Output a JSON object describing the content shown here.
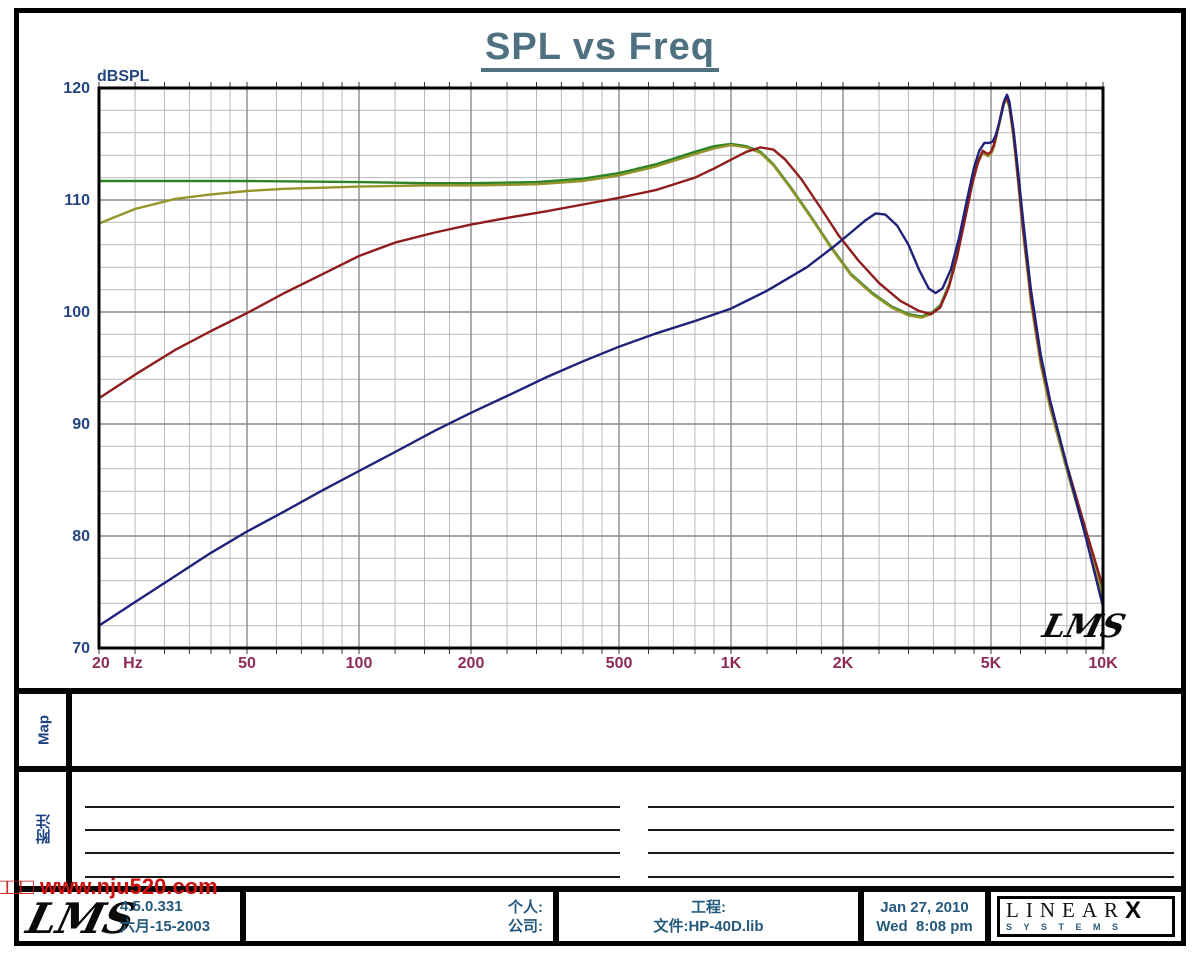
{
  "title": "SPL vs Freq",
  "colors": {
    "title": "#4e7081",
    "y_axis_text": "#25457e",
    "x_axis_text": "#8d2957",
    "grid_minor": "#b9b9b9",
    "grid_major": "#8a8a8a",
    "frame": "#000000",
    "row_label": "#1c4080",
    "footer_text": "#24597c",
    "watermark": "#cc1111"
  },
  "chart_data": {
    "type": "line",
    "title": "SPL vs Freq",
    "ylabel": "dBSPL",
    "xlabel": "",
    "x_scale": "log",
    "xlim": [
      20,
      10000
    ],
    "ylim": [
      70,
      120
    ],
    "grid": true,
    "legend": "none",
    "y_major_ticks": [
      120,
      110,
      100,
      90,
      80,
      70
    ],
    "y_minor_step_db": 2,
    "x_major_ticks": [
      20,
      50,
      100,
      200,
      500,
      1000,
      2000,
      5000,
      10000
    ],
    "x_tick_labels": [
      "20 Hz",
      "50",
      "100",
      "200",
      "500",
      "1K",
      "2K",
      "5K",
      "10K"
    ],
    "inner_logo": "LMS",
    "series": [
      {
        "name": "green",
        "color": "#2c8427",
        "points": [
          [
            20,
            111.7
          ],
          [
            50,
            111.7
          ],
          [
            100,
            111.6
          ],
          [
            150,
            111.5
          ],
          [
            200,
            111.5
          ],
          [
            300,
            111.6
          ],
          [
            400,
            111.9
          ],
          [
            500,
            112.4
          ],
          [
            630,
            113.2
          ],
          [
            800,
            114.3
          ],
          [
            900,
            114.8
          ],
          [
            1000,
            115.0
          ],
          [
            1100,
            114.8
          ],
          [
            1200,
            114.3
          ],
          [
            1300,
            113.2
          ],
          [
            1450,
            111.1
          ],
          [
            1650,
            108.4
          ],
          [
            1850,
            105.9
          ],
          [
            2100,
            103.4
          ],
          [
            2400,
            101.7
          ],
          [
            2700,
            100.5
          ],
          [
            3000,
            99.8
          ],
          [
            3250,
            99.6
          ],
          [
            3450,
            99.9
          ],
          [
            3650,
            100.6
          ],
          [
            3850,
            102.4
          ],
          [
            4050,
            105.1
          ],
          [
            4250,
            108.4
          ],
          [
            4450,
            111.6
          ],
          [
            4600,
            113.4
          ],
          [
            4750,
            114.3
          ],
          [
            4900,
            114.0
          ],
          [
            5000,
            114.2
          ],
          [
            5100,
            114.9
          ],
          [
            5250,
            116.7
          ],
          [
            5400,
            118.6
          ],
          [
            5500,
            119.1
          ],
          [
            5600,
            118.4
          ],
          [
            5750,
            115.6
          ],
          [
            5900,
            112.0
          ],
          [
            6100,
            107.2
          ],
          [
            6400,
            101.0
          ],
          [
            6800,
            95.4
          ],
          [
            7200,
            91.6
          ],
          [
            8000,
            85.9
          ],
          [
            9000,
            80.0
          ],
          [
            10000,
            74.6
          ]
        ]
      },
      {
        "name": "olive",
        "color": "#95942c",
        "points": [
          [
            20,
            107.9
          ],
          [
            25,
            109.2
          ],
          [
            32,
            110.1
          ],
          [
            40,
            110.5
          ],
          [
            50,
            110.8
          ],
          [
            63,
            111.0
          ],
          [
            80,
            111.1
          ],
          [
            100,
            111.2
          ],
          [
            150,
            111.3
          ],
          [
            200,
            111.3
          ],
          [
            300,
            111.4
          ],
          [
            400,
            111.7
          ],
          [
            500,
            112.2
          ],
          [
            630,
            113.0
          ],
          [
            800,
            114.1
          ],
          [
            900,
            114.6
          ],
          [
            1000,
            114.9
          ],
          [
            1100,
            114.7
          ],
          [
            1200,
            114.2
          ],
          [
            1300,
            113.1
          ],
          [
            1450,
            111.0
          ],
          [
            1650,
            108.3
          ],
          [
            1850,
            105.8
          ],
          [
            2100,
            103.3
          ],
          [
            2400,
            101.6
          ],
          [
            2700,
            100.4
          ],
          [
            3000,
            99.7
          ],
          [
            3250,
            99.5
          ],
          [
            3450,
            99.8
          ],
          [
            3650,
            100.5
          ],
          [
            3850,
            102.3
          ],
          [
            4050,
            105.0
          ],
          [
            4250,
            108.3
          ],
          [
            4450,
            111.5
          ],
          [
            4600,
            113.3
          ],
          [
            4750,
            114.2
          ],
          [
            4900,
            113.9
          ],
          [
            5000,
            114.1
          ],
          [
            5100,
            114.8
          ],
          [
            5250,
            116.6
          ],
          [
            5400,
            118.5
          ],
          [
            5500,
            119.0
          ],
          [
            5600,
            118.3
          ],
          [
            5750,
            115.5
          ],
          [
            5900,
            111.9
          ],
          [
            6100,
            107.1
          ],
          [
            6400,
            100.9
          ],
          [
            6800,
            95.3
          ],
          [
            7200,
            91.5
          ],
          [
            8000,
            85.8
          ],
          [
            9000,
            79.9
          ],
          [
            10000,
            74.5
          ]
        ]
      },
      {
        "name": "red",
        "color": "#8f1d1d",
        "points": [
          [
            20,
            92.3
          ],
          [
            25,
            94.4
          ],
          [
            32,
            96.6
          ],
          [
            40,
            98.3
          ],
          [
            50,
            99.9
          ],
          [
            63,
            101.7
          ],
          [
            80,
            103.4
          ],
          [
            100,
            105.0
          ],
          [
            125,
            106.2
          ],
          [
            160,
            107.1
          ],
          [
            200,
            107.8
          ],
          [
            250,
            108.4
          ],
          [
            320,
            109.0
          ],
          [
            400,
            109.6
          ],
          [
            500,
            110.2
          ],
          [
            630,
            110.9
          ],
          [
            800,
            112.0
          ],
          [
            900,
            112.8
          ],
          [
            1000,
            113.6
          ],
          [
            1100,
            114.3
          ],
          [
            1200,
            114.7
          ],
          [
            1300,
            114.5
          ],
          [
            1400,
            113.6
          ],
          [
            1550,
            111.8
          ],
          [
            1750,
            109.2
          ],
          [
            1950,
            106.8
          ],
          [
            2200,
            104.6
          ],
          [
            2500,
            102.6
          ],
          [
            2850,
            101.0
          ],
          [
            3200,
            100.1
          ],
          [
            3450,
            99.8
          ],
          [
            3650,
            100.4
          ],
          [
            3850,
            102.2
          ],
          [
            4050,
            104.9
          ],
          [
            4250,
            108.2
          ],
          [
            4450,
            111.4
          ],
          [
            4600,
            113.2
          ],
          [
            4750,
            114.4
          ],
          [
            4900,
            114.1
          ],
          [
            5000,
            114.3
          ],
          [
            5100,
            115.0
          ],
          [
            5250,
            116.8
          ],
          [
            5400,
            118.7
          ],
          [
            5500,
            119.2
          ],
          [
            5600,
            118.5
          ],
          [
            5750,
            115.8
          ],
          [
            5900,
            112.2
          ],
          [
            6100,
            107.5
          ],
          [
            6400,
            101.4
          ],
          [
            6800,
            95.8
          ],
          [
            7200,
            92.0
          ],
          [
            8000,
            86.3
          ],
          [
            9000,
            80.5
          ],
          [
            10000,
            75.4
          ]
        ]
      },
      {
        "name": "blue",
        "color": "#1e2278",
        "points": [
          [
            20,
            72.0
          ],
          [
            25,
            74.1
          ],
          [
            32,
            76.4
          ],
          [
            40,
            78.5
          ],
          [
            50,
            80.4
          ],
          [
            63,
            82.2
          ],
          [
            80,
            84.1
          ],
          [
            100,
            85.8
          ],
          [
            125,
            87.5
          ],
          [
            160,
            89.4
          ],
          [
            200,
            91.0
          ],
          [
            250,
            92.5
          ],
          [
            320,
            94.2
          ],
          [
            400,
            95.6
          ],
          [
            500,
            96.9
          ],
          [
            630,
            98.1
          ],
          [
            800,
            99.2
          ],
          [
            1000,
            100.3
          ],
          [
            1250,
            101.9
          ],
          [
            1600,
            104.0
          ],
          [
            1900,
            105.9
          ],
          [
            2100,
            107.1
          ],
          [
            2300,
            108.2
          ],
          [
            2450,
            108.8
          ],
          [
            2600,
            108.7
          ],
          [
            2800,
            107.7
          ],
          [
            3000,
            106.0
          ],
          [
            3200,
            103.8
          ],
          [
            3400,
            102.1
          ],
          [
            3550,
            101.7
          ],
          [
            3700,
            102.1
          ],
          [
            3900,
            103.8
          ],
          [
            4100,
            106.6
          ],
          [
            4300,
            109.9
          ],
          [
            4500,
            112.9
          ],
          [
            4650,
            114.4
          ],
          [
            4800,
            115.1
          ],
          [
            4950,
            115.1
          ],
          [
            5050,
            115.2
          ],
          [
            5150,
            115.8
          ],
          [
            5300,
            117.3
          ],
          [
            5450,
            119.0
          ],
          [
            5520,
            119.4
          ],
          [
            5600,
            118.8
          ],
          [
            5750,
            116.2
          ],
          [
            5900,
            112.8
          ],
          [
            6100,
            108.2
          ],
          [
            6400,
            102.0
          ],
          [
            6800,
            96.2
          ],
          [
            7200,
            92.2
          ],
          [
            8000,
            86.2
          ],
          [
            9000,
            79.8
          ],
          [
            10000,
            73.7
          ]
        ]
      }
    ]
  },
  "sidebar": {
    "map_label": "Map",
    "notes_label": "附注"
  },
  "watermark": "□□□ www.nju520.com",
  "footer": {
    "lms_logo": "LMS",
    "version": "4.5.0.331",
    "version_date": "六月-15-2003",
    "personal_label": "个人:",
    "company_label": "公司:",
    "project_label": "工程:",
    "file_label": "文件:HP-40D.lib",
    "date": "Jan 27, 2010",
    "time": "Wed  8:08 pm",
    "linearx_line1": "LINEAR",
    "linearx_x": "X",
    "linearx_line2": "SYSTEMS"
  }
}
